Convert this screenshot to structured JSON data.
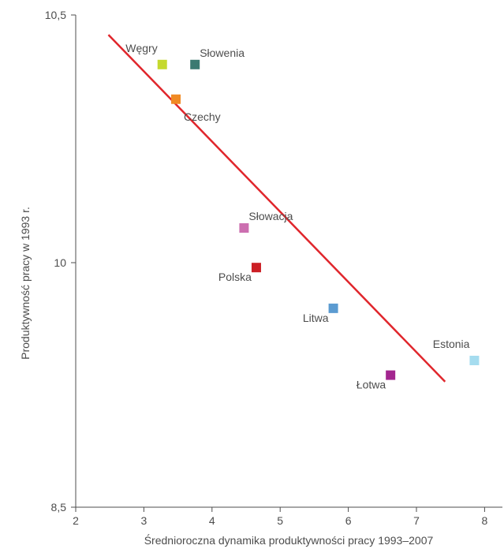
{
  "chart_data": {
    "type": "scatter",
    "xlabel": "Średnioroczna dynamika produktywności pracy 1993–2007",
    "ylabel": "Produktywność pracy w 1993 r.",
    "xlim": [
      2,
      8.2
    ],
    "ylim": [
      8.5,
      10.5
    ],
    "x_ticks": [
      2,
      3,
      4,
      5,
      6,
      7,
      8
    ],
    "y_ticks": [
      8.5,
      10,
      10.5
    ],
    "x_tick_labels": [
      "2",
      "3",
      "4",
      "5",
      "6",
      "7",
      "8"
    ],
    "y_tick_labels": [
      "8,5",
      "10",
      "10,5"
    ],
    "grid": false,
    "legend": "none",
    "points": [
      {
        "label": "Węgry",
        "x": 3.27,
        "y": 10.4,
        "color": "#c5d92e",
        "label_pos": "upper-left"
      },
      {
        "label": "Słowenia",
        "x": 3.75,
        "y": 10.4,
        "color": "#3b7a72",
        "label_pos": "upper-right"
      },
      {
        "label": "Czechy",
        "x": 3.47,
        "y": 10.33,
        "color": "#f08a24",
        "label_pos": "lower-right"
      },
      {
        "label": "Słowacja",
        "x": 4.47,
        "y": 10.07,
        "color": "#cc6fb0",
        "label_pos": "upper-right"
      },
      {
        "label": "Polska",
        "x": 4.65,
        "y": 9.97,
        "color": "#cc1f25",
        "label_pos": "lower-left"
      },
      {
        "label": "Litwa",
        "x": 5.78,
        "y": 9.72,
        "color": "#5b9bd1",
        "label_pos": "lower-left"
      },
      {
        "label": "Estonia",
        "x": 7.85,
        "y": 9.4,
        "color": "#a5dcef",
        "label_pos": "upper-left"
      },
      {
        "label": "Łotwa",
        "x": 6.62,
        "y": 9.31,
        "color": "#a3268f",
        "label_pos": "lower-left"
      }
    ],
    "trend_line": {
      "x1": 2.48,
      "y1": 10.46,
      "x2": 7.42,
      "y2": 9.27,
      "color": "#e0262c"
    }
  }
}
